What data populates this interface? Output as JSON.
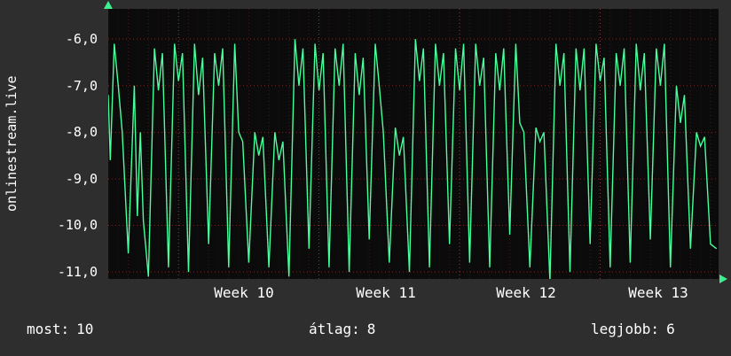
{
  "source_label": "onlinestream.live",
  "footer": {
    "stats": [
      {
        "label": "most:",
        "value": "10"
      },
      {
        "label": "átlag:",
        "value": "8"
      },
      {
        "label": "legjobb:",
        "value": "6"
      }
    ]
  },
  "chart_data": {
    "type": "line",
    "title": "",
    "xlabel": "",
    "ylabel": "onlinestream.live",
    "legend": [],
    "grid": true,
    "y_ticks": [
      "-6,0",
      "-7,0",
      "-8,0",
      "-9,0",
      "-10,0",
      "-11,0"
    ],
    "y_tick_values": [
      -6,
      -7,
      -8,
      -9,
      -10,
      -11
    ],
    "ylim": [
      -11.15,
      -5.35
    ],
    "xlim": [
      0,
      30.4
    ],
    "x_tick_labels": [
      "Week 10",
      "Week 11",
      "Week 12",
      "Week 13"
    ],
    "x_tick_centers_days": [
      7,
      14,
      21,
      28
    ],
    "week_boundaries_days": [
      3.5,
      10.5,
      17.5,
      24.5
    ],
    "colors": {
      "line": "#47ff9c",
      "plot_bg": "#0b0b0b",
      "grid_major": "rgba(200,70,70,0.55)",
      "grid_week": "rgba(210,80,80,0.65)",
      "grid_minor": "rgba(190,70,70,0.30)",
      "grid_faint": "rgba(170,70,70,0.16)",
      "arrow": "#3fef8f"
    },
    "points": [
      [
        0.0,
        -7.2
      ],
      [
        0.1,
        -8.6
      ],
      [
        0.3,
        -6.1
      ],
      [
        0.5,
        -7.0
      ],
      [
        0.7,
        -8.0
      ],
      [
        1.0,
        -10.6
      ],
      [
        1.3,
        -7.0
      ],
      [
        1.45,
        -9.8
      ],
      [
        1.6,
        -8.0
      ],
      [
        1.75,
        -9.9
      ],
      [
        2.0,
        -11.1
      ],
      [
        2.3,
        -6.2
      ],
      [
        2.5,
        -7.1
      ],
      [
        2.7,
        -6.3
      ],
      [
        3.0,
        -10.9
      ],
      [
        3.3,
        -6.1
      ],
      [
        3.5,
        -6.9
      ],
      [
        3.7,
        -6.3
      ],
      [
        4.0,
        -11.0
      ],
      [
        4.3,
        -6.1
      ],
      [
        4.5,
        -7.2
      ],
      [
        4.7,
        -6.4
      ],
      [
        5.0,
        -10.4
      ],
      [
        5.3,
        -6.3
      ],
      [
        5.5,
        -7.0
      ],
      [
        5.7,
        -6.2
      ],
      [
        6.0,
        -10.9
      ],
      [
        6.3,
        -6.1
      ],
      [
        6.5,
        -8.0
      ],
      [
        6.7,
        -8.2
      ],
      [
        7.0,
        -10.8
      ],
      [
        7.3,
        -8.0
      ],
      [
        7.5,
        -8.5
      ],
      [
        7.7,
        -8.1
      ],
      [
        8.0,
        -10.9
      ],
      [
        8.3,
        -8.0
      ],
      [
        8.5,
        -8.6
      ],
      [
        8.7,
        -8.2
      ],
      [
        9.0,
        -11.1
      ],
      [
        9.3,
        -6.0
      ],
      [
        9.5,
        -7.0
      ],
      [
        9.7,
        -6.2
      ],
      [
        10.0,
        -10.5
      ],
      [
        10.3,
        -6.1
      ],
      [
        10.5,
        -7.1
      ],
      [
        10.7,
        -6.3
      ],
      [
        11.0,
        -10.9
      ],
      [
        11.3,
        -6.2
      ],
      [
        11.5,
        -7.0
      ],
      [
        11.7,
        -6.1
      ],
      [
        12.0,
        -11.0
      ],
      [
        12.3,
        -6.3
      ],
      [
        12.5,
        -7.2
      ],
      [
        12.7,
        -6.4
      ],
      [
        13.0,
        -10.3
      ],
      [
        13.3,
        -6.1
      ],
      [
        13.5,
        -7.0
      ],
      [
        13.7,
        -8.0
      ],
      [
        14.0,
        -10.8
      ],
      [
        14.3,
        -7.9
      ],
      [
        14.5,
        -8.5
      ],
      [
        14.7,
        -8.1
      ],
      [
        15.0,
        -11.0
      ],
      [
        15.3,
        -6.0
      ],
      [
        15.5,
        -6.9
      ],
      [
        15.7,
        -6.2
      ],
      [
        16.0,
        -10.9
      ],
      [
        16.3,
        -6.1
      ],
      [
        16.5,
        -7.0
      ],
      [
        16.7,
        -6.3
      ],
      [
        17.0,
        -10.4
      ],
      [
        17.3,
        -6.2
      ],
      [
        17.5,
        -7.1
      ],
      [
        17.7,
        -6.1
      ],
      [
        18.0,
        -10.8
      ],
      [
        18.3,
        -6.1
      ],
      [
        18.5,
        -7.0
      ],
      [
        18.7,
        -6.4
      ],
      [
        19.0,
        -10.9
      ],
      [
        19.3,
        -6.3
      ],
      [
        19.5,
        -7.1
      ],
      [
        19.7,
        -6.2
      ],
      [
        20.0,
        -10.2
      ],
      [
        20.3,
        -6.1
      ],
      [
        20.5,
        -7.8
      ],
      [
        20.7,
        -8.0
      ],
      [
        21.0,
        -10.9
      ],
      [
        21.3,
        -7.9
      ],
      [
        21.5,
        -8.2
      ],
      [
        21.7,
        -8.0
      ],
      [
        22.0,
        -11.2
      ],
      [
        22.3,
        -6.1
      ],
      [
        22.5,
        -7.0
      ],
      [
        22.7,
        -6.3
      ],
      [
        23.0,
        -11.0
      ],
      [
        23.3,
        -6.2
      ],
      [
        23.5,
        -7.1
      ],
      [
        23.7,
        -6.2
      ],
      [
        24.0,
        -10.4
      ],
      [
        24.3,
        -6.1
      ],
      [
        24.5,
        -6.9
      ],
      [
        24.7,
        -6.4
      ],
      [
        25.0,
        -10.9
      ],
      [
        25.3,
        -6.3
      ],
      [
        25.5,
        -7.0
      ],
      [
        25.7,
        -6.2
      ],
      [
        26.0,
        -10.8
      ],
      [
        26.3,
        -6.1
      ],
      [
        26.5,
        -7.1
      ],
      [
        26.7,
        -6.3
      ],
      [
        27.0,
        -10.3
      ],
      [
        27.3,
        -6.2
      ],
      [
        27.5,
        -7.0
      ],
      [
        27.7,
        -6.1
      ],
      [
        28.0,
        -10.9
      ],
      [
        28.3,
        -7.0
      ],
      [
        28.5,
        -7.8
      ],
      [
        28.7,
        -7.2
      ],
      [
        29.0,
        -10.5
      ],
      [
        29.3,
        -8.0
      ],
      [
        29.5,
        -8.3
      ],
      [
        29.7,
        -8.1
      ],
      [
        30.0,
        -10.4
      ],
      [
        30.3,
        -10.5
      ]
    ]
  }
}
